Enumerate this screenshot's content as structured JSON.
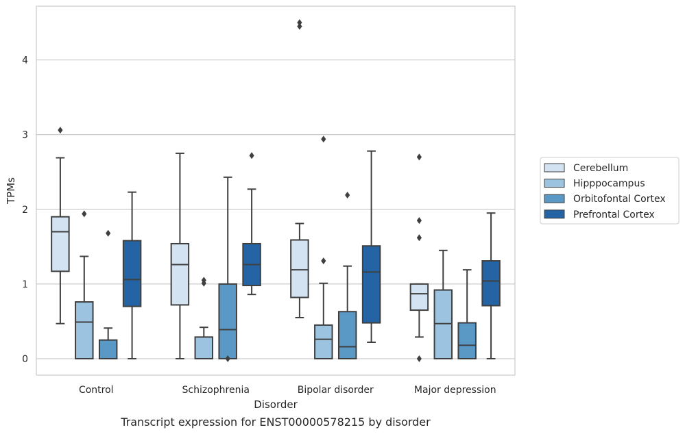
{
  "chart_data": {
    "type": "box",
    "xlabel": "Disorder",
    "ylabel": "TPMs",
    "caption": "Transcript expression for ENST00000578215 by disorder",
    "ylim": [
      -0.22,
      4.72
    ],
    "yticks": [
      0,
      1,
      2,
      3,
      4
    ],
    "grid": "horizontal",
    "legend_position": "right",
    "categories": [
      "Control",
      "Schizophrenia",
      "Bipolar disorder",
      "Major depression"
    ],
    "series": [
      {
        "name": "Cerebellum",
        "color": "#d3e3f2",
        "boxes": [
          {
            "whislo": 0.47,
            "q1": 1.17,
            "med": 1.7,
            "q3": 1.9,
            "whishi": 2.69,
            "fliers": [
              3.06
            ]
          },
          {
            "whislo": 0.0,
            "q1": 0.72,
            "med": 1.26,
            "q3": 1.54,
            "whishi": 2.75,
            "fliers": []
          },
          {
            "whislo": 0.55,
            "q1": 0.82,
            "med": 1.19,
            "q3": 1.59,
            "whishi": 1.81,
            "fliers": [
              4.45,
              4.5
            ]
          },
          {
            "whislo": 0.29,
            "q1": 0.65,
            "med": 0.87,
            "q3": 1.0,
            "whishi": 1.0,
            "fliers": [
              2.7,
              1.85,
              1.62,
              0.0
            ]
          }
        ]
      },
      {
        "name": "Hipppocampus",
        "color": "#9cc3df",
        "boxes": [
          {
            "whislo": 0.0,
            "q1": 0.0,
            "med": 0.49,
            "q3": 0.76,
            "whishi": 1.37,
            "fliers": [
              1.94
            ]
          },
          {
            "whislo": 0.0,
            "q1": 0.0,
            "med": 0.0,
            "q3": 0.29,
            "whishi": 0.42,
            "fliers": [
              1.05,
              1.01
            ]
          },
          {
            "whislo": 0.0,
            "q1": 0.0,
            "med": 0.26,
            "q3": 0.45,
            "whishi": 1.01,
            "fliers": [
              1.31,
              2.94
            ]
          },
          {
            "whislo": 0.0,
            "q1": 0.0,
            "med": 0.47,
            "q3": 0.92,
            "whishi": 1.45,
            "fliers": []
          }
        ]
      },
      {
        "name": "Orbitofontal Cortex",
        "color": "#5a98c6",
        "boxes": [
          {
            "whislo": 0.0,
            "q1": 0.0,
            "med": 0.0,
            "q3": 0.25,
            "whishi": 0.41,
            "fliers": [
              1.68
            ]
          },
          {
            "whislo": 0.0,
            "q1": 0.0,
            "med": 0.39,
            "q3": 1.0,
            "whishi": 2.43,
            "fliers": [
              0.0
            ]
          },
          {
            "whislo": 0.0,
            "q1": 0.0,
            "med": 0.16,
            "q3": 0.63,
            "whishi": 1.24,
            "fliers": [
              2.19
            ]
          },
          {
            "whislo": 0.0,
            "q1": 0.0,
            "med": 0.18,
            "q3": 0.48,
            "whishi": 1.19,
            "fliers": []
          }
        ]
      },
      {
        "name": "Prefrontal Cortex",
        "color": "#2464a4",
        "boxes": [
          {
            "whislo": 0.0,
            "q1": 0.7,
            "med": 1.06,
            "q3": 1.58,
            "whishi": 2.23,
            "fliers": []
          },
          {
            "whislo": 0.86,
            "q1": 0.98,
            "med": 1.26,
            "q3": 1.54,
            "whishi": 2.27,
            "fliers": [
              2.72
            ]
          },
          {
            "whislo": 0.22,
            "q1": 0.48,
            "med": 1.16,
            "q3": 1.51,
            "whishi": 2.78,
            "fliers": []
          },
          {
            "whislo": 0.0,
            "q1": 0.71,
            "med": 1.04,
            "q3": 1.31,
            "whishi": 1.95,
            "fliers": []
          }
        ]
      }
    ]
  }
}
